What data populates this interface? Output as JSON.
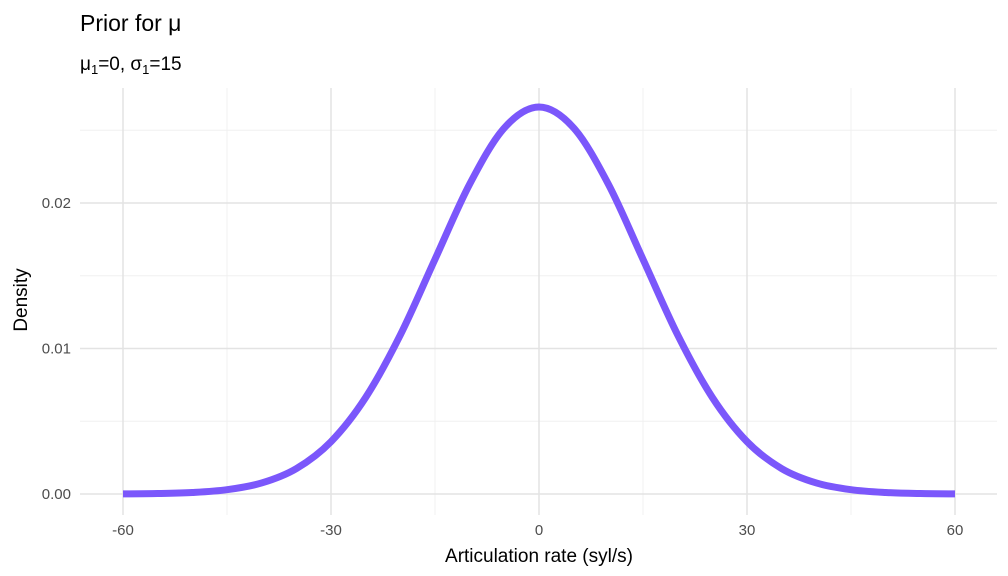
{
  "chart_data": {
    "type": "line",
    "title": "Prior for μ",
    "subtitle": {
      "mu_symbol": "μ",
      "mu_sub": "1",
      "mu_value": "=0, ",
      "sigma_symbol": "σ",
      "sigma_sub": "1",
      "sigma_value": "=15"
    },
    "xlabel": "Articulation rate (syl/s)",
    "ylabel": "Density",
    "xlim": [
      -60,
      60
    ],
    "ylim": [
      0,
      0.0266
    ],
    "x_ticks": [
      {
        "value": -60,
        "label": "-60"
      },
      {
        "value": -30,
        "label": "-30"
      },
      {
        "value": 0,
        "label": "0"
      },
      {
        "value": 30,
        "label": "30"
      },
      {
        "value": 60,
        "label": "60"
      }
    ],
    "y_ticks": [
      {
        "value": 0,
        "label": "0.00"
      },
      {
        "value": 0.01,
        "label": "0.01"
      },
      {
        "value": 0.02,
        "label": "0.02"
      }
    ],
    "grid": true,
    "series": [
      {
        "color": "#7b57fb",
        "x": [
          -60,
          -55,
          -50,
          -45,
          -40,
          -35,
          -30,
          -25,
          -20,
          -15,
          -10,
          -5,
          0,
          5,
          10,
          15,
          20,
          25,
          30,
          35,
          40,
          45,
          50,
          55,
          60
        ],
        "y": [
          9e-06,
          3.1e-05,
          0.000103,
          0.000295,
          0.000759,
          0.001746,
          0.003599,
          0.006637,
          0.010934,
          0.016131,
          0.021297,
          0.025159,
          0.026596,
          0.025159,
          0.021297,
          0.016131,
          0.010934,
          0.006637,
          0.003599,
          0.001746,
          0.000759,
          0.000295,
          0.000103,
          3.1e-05,
          9e-06
        ]
      }
    ]
  }
}
